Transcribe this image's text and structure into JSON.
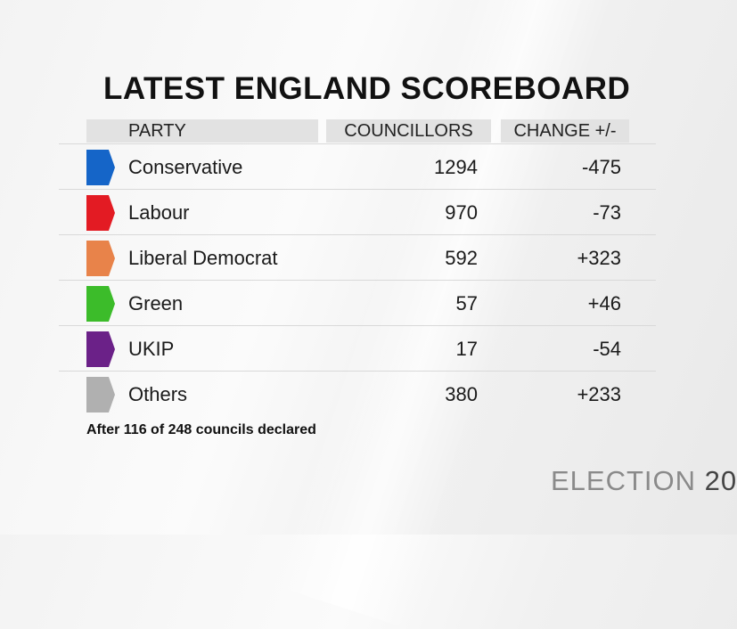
{
  "chart_data": {
    "type": "table",
    "title": "LATEST ENGLAND SCOREBOARD",
    "columns": [
      "PARTY",
      "COUNCILLORS",
      "CHANGE +/-"
    ],
    "rows": [
      {
        "party": "Conservative",
        "councillors": "1294",
        "change": "-475",
        "color": "#1565c8"
      },
      {
        "party": "Labour",
        "councillors": "970",
        "change": "-73",
        "color": "#e31b23"
      },
      {
        "party": "Liberal Democrat",
        "councillors": "592",
        "change": "+323",
        "color": "#e8834a"
      },
      {
        "party": "Green",
        "councillors": "57",
        "change": "+46",
        "color": "#3cbc2a"
      },
      {
        "party": "UKIP",
        "councillors": "17",
        "change": "-54",
        "color": "#6b2188"
      },
      {
        "party": "Others",
        "councillors": "380",
        "change": "+233",
        "color": "#b0b0b0"
      }
    ],
    "footnote": "After 116 of 248 councils declared"
  },
  "brand": {
    "word": "ELECTION",
    "year": "20"
  }
}
